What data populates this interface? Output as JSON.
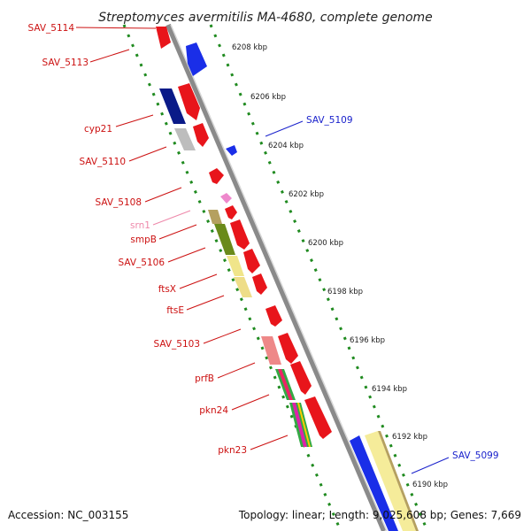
{
  "title": "Streptomyces avermitilis MA-4680, complete genome",
  "footer": {
    "accession": "Accession: NC_003155",
    "topology": "Topology: linear; Length: 9,025,608 bp; Genes: 7,669"
  },
  "colors": {
    "strand_red": "#e8151b",
    "strand_blue": "#1a2ee8",
    "backbone": "#8a8a8a",
    "tick_green": "#1f8a1f",
    "label_red": "#cc1111",
    "label_blue": "#1a22cc",
    "label_pink": "#ee88aa"
  },
  "kbp_ticks": [
    {
      "label": "6208 kbp"
    },
    {
      "label": "6206 kbp"
    },
    {
      "label": "6204 kbp"
    },
    {
      "label": "6202 kbp"
    },
    {
      "label": "6200 kbp"
    },
    {
      "label": "6198 kbp"
    },
    {
      "label": "6196 kbp"
    },
    {
      "label": "6194 kbp"
    },
    {
      "label": "6192 kbp"
    },
    {
      "label": "6190 kbp"
    }
  ],
  "left_labels": [
    {
      "name": "SAV_5114",
      "color": "#cc1111"
    },
    {
      "name": "SAV_5113",
      "color": "#cc1111"
    },
    {
      "name": "cyp21",
      "color": "#cc1111"
    },
    {
      "name": "SAV_5110",
      "color": "#cc1111"
    },
    {
      "name": "SAV_5108",
      "color": "#cc1111"
    },
    {
      "name": "srn1",
      "color": "#ee88aa"
    },
    {
      "name": "smpB",
      "color": "#cc1111"
    },
    {
      "name": "SAV_5106",
      "color": "#cc1111"
    },
    {
      "name": "ftsX",
      "color": "#cc1111"
    },
    {
      "name": "ftsE",
      "color": "#cc1111"
    },
    {
      "name": "SAV_5103",
      "color": "#cc1111"
    },
    {
      "name": "prfB",
      "color": "#cc1111"
    },
    {
      "name": "pkn24",
      "color": "#cc1111"
    },
    {
      "name": "pkn23",
      "color": "#cc1111"
    }
  ],
  "right_labels": [
    {
      "name": "SAV_5109",
      "color": "#1a22cc"
    },
    {
      "name": "SAV_5099",
      "color": "#1a22cc"
    }
  ]
}
